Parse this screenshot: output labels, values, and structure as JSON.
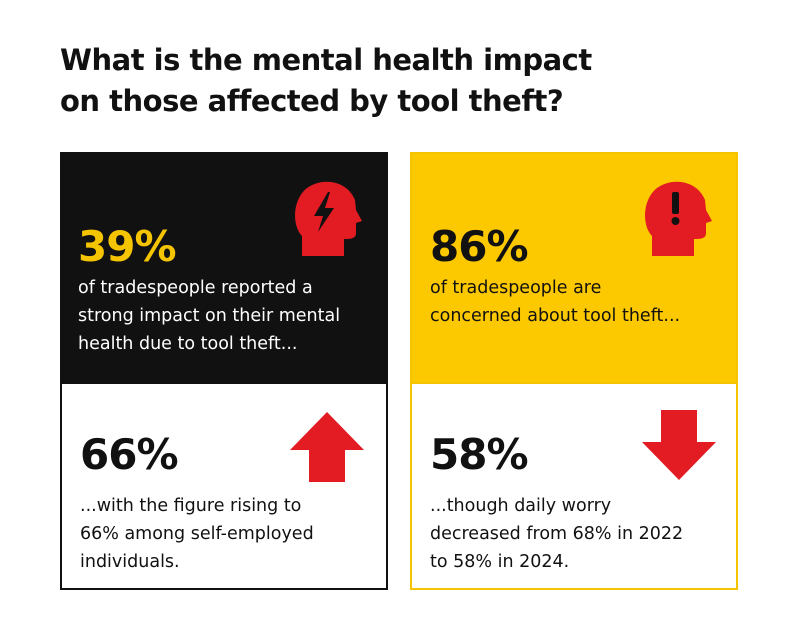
{
  "header": {
    "title": [
      "What is the mental health impact",
      "on those affected by tool theft?"
    ]
  },
  "cards": [
    {
      "stat": "39%",
      "lines": [
        "of tradespeople reported a",
        "strong impact on their mental",
        "health due to tool theft..."
      ]
    },
    {
      "stat": "86%",
      "lines": [
        "of tradespeople are",
        "concerned about tool theft..."
      ]
    },
    {
      "stat": "66%",
      "lines": [
        "...with the figure rising to",
        "66% among self-employed",
        "individuals."
      ]
    },
    {
      "stat": "58%",
      "lines": [
        "...though daily worry",
        "decreased from 68% in 2022",
        "to 58% in 2024."
      ]
    }
  ]
}
